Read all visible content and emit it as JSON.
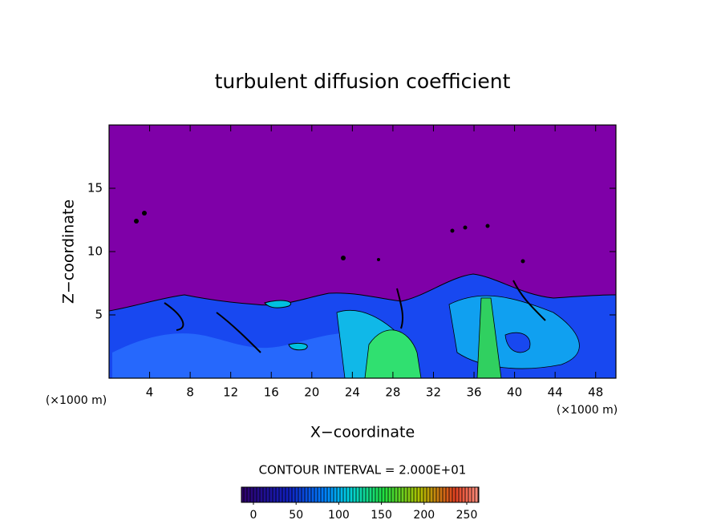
{
  "chart_data": {
    "type": "contour",
    "title": "turbulent diffusion coefficient",
    "x_label": "X−coordinate",
    "y_label": "Z−coordinate",
    "x_unit_label": "(×1000 m)",
    "xlim": [
      0,
      50
    ],
    "xticks": [
      4,
      8,
      12,
      16,
      20,
      24,
      28,
      32,
      36,
      40,
      44,
      48
    ],
    "ylim": [
      0,
      20
    ],
    "yticks": [
      5,
      10,
      15
    ],
    "contour_interval_label": "CONTOUR INTERVAL = 2.000E+01",
    "colorbar": {
      "lim": [
        0,
        250
      ],
      "ticks": [
        0,
        50,
        100,
        150,
        200,
        250
      ]
    }
  }
}
